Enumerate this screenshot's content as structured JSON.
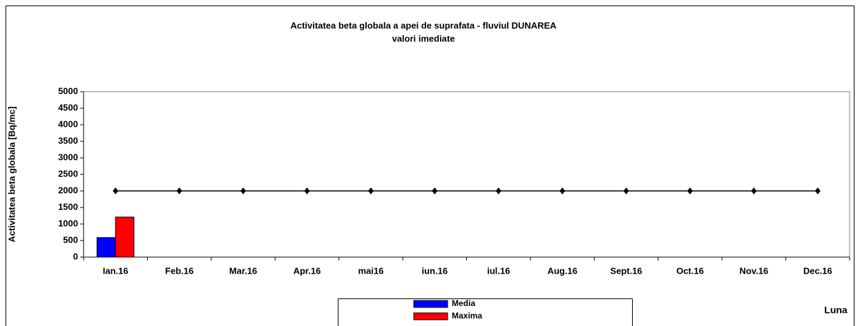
{
  "chart_data": {
    "type": "bar",
    "title": "Activitatea beta globala a apei de suprafata - fluviul DUNAREA",
    "subtitle": "valori imediate",
    "y_label": "Activitatea beta globala [Bq/mc]",
    "x_label": "Luna",
    "categories": [
      "Ian.16",
      "Feb.16",
      "Mar.16",
      "Apr.16",
      "mai16",
      "iun.16",
      "iul.16",
      "Aug.16",
      "Sept.16",
      "Oct.16",
      "Nov.16",
      "Dec.16"
    ],
    "series": [
      {
        "name": "Media",
        "color": "#0000ff",
        "values": [
          590,
          null,
          null,
          null,
          null,
          null,
          null,
          null,
          null,
          null,
          null,
          null
        ]
      },
      {
        "name": "Maxima",
        "color": "#ff0000",
        "values": [
          1210,
          null,
          null,
          null,
          null,
          null,
          null,
          null,
          null,
          null,
          null,
          null
        ]
      },
      {
        "type": "line",
        "color": "#000000",
        "values": [
          2000,
          2000,
          2000,
          2000,
          2000,
          2000,
          2000,
          2000,
          2000,
          2000,
          2000,
          2000
        ]
      }
    ],
    "ylim": [
      0,
      5000
    ],
    "yticks": [
      0,
      500,
      1000,
      1500,
      2000,
      2500,
      3000,
      3500,
      4000,
      4500,
      5000
    ],
    "grid": false
  }
}
